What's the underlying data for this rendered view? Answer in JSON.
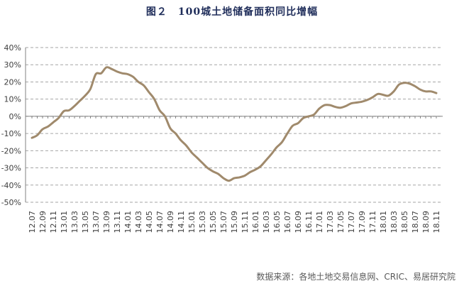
{
  "chart_data": {
    "type": "line",
    "title": "图２　100城土地储备面积同比增幅",
    "source": "数据来源：各地土地交易信息网、CRIC、易居研究院",
    "ylim": [
      -0.5,
      0.4
    ],
    "y_ticks": [
      "40%",
      "30%",
      "20%",
      "10%",
      "0%",
      "-10%",
      "-20%",
      "-30%",
      "-40%",
      "-50%"
    ],
    "grid": "horizontal dashed",
    "line_color": "#a08a6c",
    "x_tick_labels": [
      "12.07",
      "12.09",
      "12.11",
      "13.01",
      "13.03",
      "13.05",
      "13.07",
      "13.09",
      "13.11",
      "14.01",
      "14.03",
      "14.05",
      "14.07",
      "14.09",
      "14.11",
      "15.01",
      "15.03",
      "15.05",
      "15.07",
      "15.09",
      "15.11",
      "16.01",
      "16.03",
      "16.05",
      "16.07",
      "16.09",
      "16.11",
      "17.01",
      "17.03",
      "17.05",
      "17.07",
      "17.09",
      "17.11",
      "18.01",
      "18.03",
      "18.05",
      "18.07",
      "18.09",
      "18.11"
    ],
    "x": [
      "12.07",
      "12.08",
      "12.09",
      "12.10",
      "12.11",
      "12.12",
      "13.01",
      "13.02",
      "13.03",
      "13.04",
      "13.05",
      "13.06",
      "13.07",
      "13.08",
      "13.09",
      "13.10",
      "13.11",
      "13.12",
      "14.01",
      "14.02",
      "14.03",
      "14.04",
      "14.05",
      "14.06",
      "14.07",
      "14.08",
      "14.09",
      "14.10",
      "14.11",
      "14.12",
      "15.01",
      "15.02",
      "15.03",
      "15.04",
      "15.05",
      "15.06",
      "15.07",
      "15.08",
      "15.09",
      "15.10",
      "15.11",
      "15.12",
      "16.01",
      "16.02",
      "16.03",
      "16.04",
      "16.05",
      "16.06",
      "16.07",
      "16.08",
      "16.09",
      "16.10",
      "16.11",
      "16.12",
      "17.01",
      "17.02",
      "17.03",
      "17.04",
      "17.05",
      "17.06",
      "17.07",
      "17.08",
      "17.09",
      "17.10",
      "17.11",
      "17.12",
      "18.01",
      "18.02",
      "18.03",
      "18.04",
      "18.05",
      "18.06",
      "18.07",
      "18.08",
      "18.09",
      "18.10",
      "18.11"
    ],
    "series": [
      {
        "values": [
          -0.125,
          -0.11,
          -0.075,
          -0.06,
          -0.035,
          -0.01,
          0.03,
          0.035,
          0.06,
          0.09,
          0.12,
          0.16,
          0.245,
          0.25,
          0.285,
          0.275,
          0.26,
          0.25,
          0.245,
          0.23,
          0.2,
          0.18,
          0.14,
          0.1,
          0.035,
          0.0,
          -0.07,
          -0.1,
          -0.14,
          -0.17,
          -0.21,
          -0.24,
          -0.27,
          -0.3,
          -0.32,
          -0.335,
          -0.36,
          -0.375,
          -0.36,
          -0.355,
          -0.345,
          -0.325,
          -0.31,
          -0.29,
          -0.255,
          -0.22,
          -0.18,
          -0.15,
          -0.1,
          -0.055,
          -0.04,
          -0.01,
          0.0,
          0.01,
          0.045,
          0.065,
          0.065,
          0.055,
          0.05,
          0.06,
          0.075,
          0.08,
          0.085,
          0.095,
          0.11,
          0.13,
          0.125,
          0.12,
          0.145,
          0.185,
          0.195,
          0.19,
          0.175,
          0.155,
          0.145,
          0.145,
          0.135
        ]
      }
    ]
  }
}
